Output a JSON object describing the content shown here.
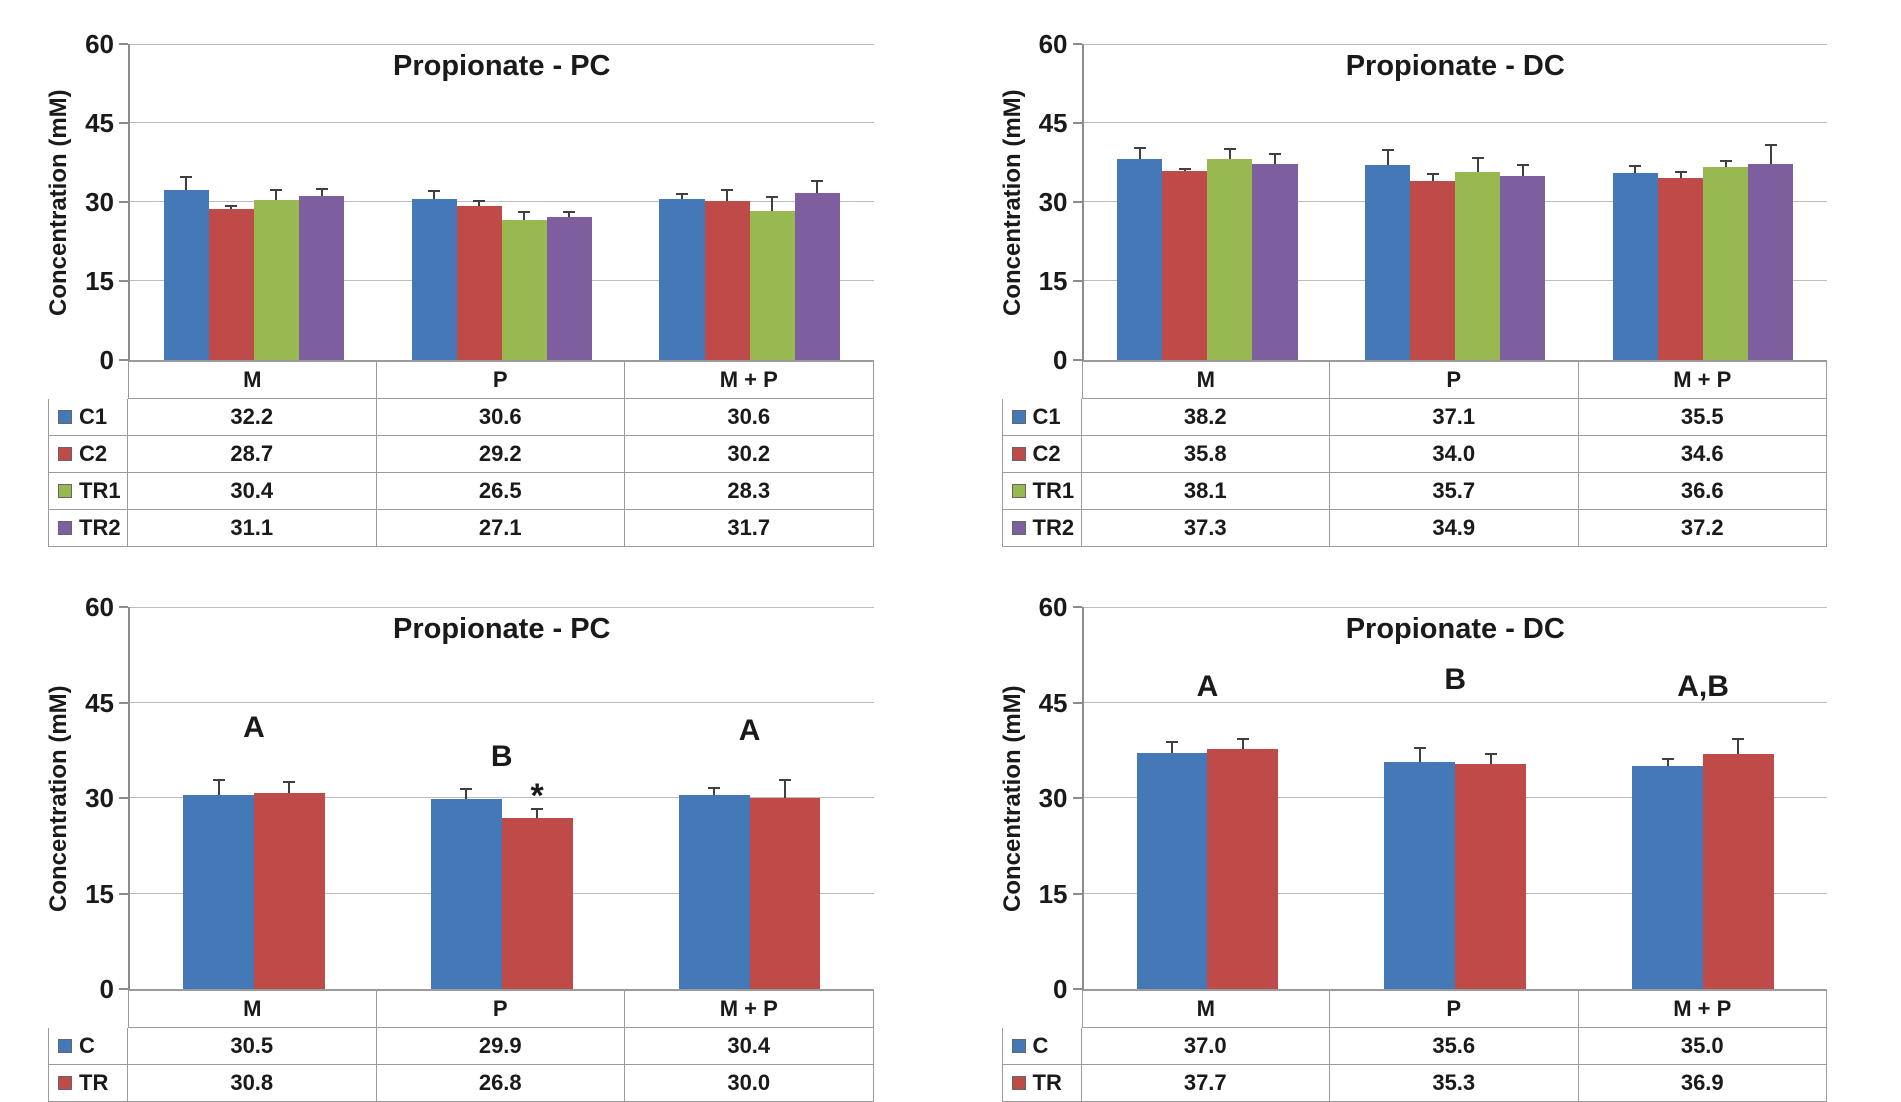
{
  "figure": {
    "panel_layout": "2x2",
    "background": "#ffffff"
  },
  "colors": {
    "series_blue": "#4478B6",
    "series_red": "#BE4B48",
    "series_green": "#98B952",
    "series_purple": "#7D5FA0",
    "gridline": "#bcbcbc",
    "axis": "#8c8c8c",
    "table_border": "#9b9b9b",
    "error_bar": "#3f3f3f",
    "text": "#1a1a1a"
  },
  "chart_data": [
    {
      "type": "bar",
      "position": "top-left",
      "title": "Propionate - PC",
      "ylabel": "Concentration (mM)",
      "ylim": [
        0,
        60
      ],
      "yticks": [
        0,
        15,
        30,
        45,
        60
      ],
      "grid": true,
      "legend_position": "data-table-left",
      "categories": [
        "M",
        "P",
        "M + P"
      ],
      "series": [
        {
          "name": "C1",
          "color": "#4478B6",
          "values": [
            32.2,
            30.6,
            30.6
          ],
          "errors": [
            2.8,
            1.6,
            1.2
          ]
        },
        {
          "name": "C2",
          "color": "#BE4B48",
          "values": [
            28.7,
            29.2,
            30.2
          ],
          "errors": [
            0.8,
            1.2,
            2.2
          ]
        },
        {
          "name": "TR1",
          "color": "#98B952",
          "values": [
            30.4,
            26.5,
            28.3
          ],
          "errors": [
            2.0,
            1.8,
            2.8
          ]
        },
        {
          "name": "TR2",
          "color": "#7D5FA0",
          "values": [
            31.1,
            27.1,
            31.7
          ],
          "errors": [
            1.6,
            1.2,
            2.4
          ]
        }
      ],
      "annotations": []
    },
    {
      "type": "bar",
      "position": "top-right",
      "title": "Propionate - DC",
      "ylabel": "Concentration (mM)",
      "ylim": [
        0,
        60
      ],
      "yticks": [
        0,
        15,
        30,
        45,
        60
      ],
      "grid": true,
      "legend_position": "data-table-left",
      "categories": [
        "M",
        "P",
        "M + P"
      ],
      "series": [
        {
          "name": "C1",
          "color": "#4478B6",
          "values": [
            38.2,
            37.1,
            35.5
          ],
          "errors": [
            2.3,
            2.9,
            1.5
          ]
        },
        {
          "name": "C2",
          "color": "#BE4B48",
          "values": [
            35.8,
            34.0,
            34.6
          ],
          "errors": [
            0.7,
            1.5,
            1.2
          ]
        },
        {
          "name": "TR1",
          "color": "#98B952",
          "values": [
            38.1,
            35.7,
            36.6
          ],
          "errors": [
            2.2,
            2.8,
            1.4
          ]
        },
        {
          "name": "TR2",
          "color": "#7D5FA0",
          "values": [
            37.3,
            34.9,
            37.2
          ],
          "errors": [
            2.0,
            2.3,
            3.8
          ]
        }
      ],
      "annotations": []
    },
    {
      "type": "bar",
      "position": "bottom-left",
      "title": "Propionate - PC",
      "ylabel": "Concentration (mM)",
      "ylim": [
        0,
        60
      ],
      "yticks": [
        0,
        15,
        30,
        45,
        60
      ],
      "grid": true,
      "legend_position": "data-table-left",
      "categories": [
        "M",
        "P",
        "M + P"
      ],
      "series": [
        {
          "name": "C",
          "color": "#4478B6",
          "values": [
            30.5,
            29.9,
            30.4
          ],
          "errors": [
            2.5,
            1.6,
            1.4
          ]
        },
        {
          "name": "TR",
          "color": "#BE4B48",
          "values": [
            30.8,
            26.8,
            30.0
          ],
          "errors": [
            1.9,
            1.7,
            3.0
          ]
        }
      ],
      "annotations": [
        {
          "text": "A",
          "category": 0,
          "y": 41.0
        },
        {
          "text": "B",
          "category": 1,
          "y": 36.5
        },
        {
          "text": "*",
          "category": 1,
          "series": 1,
          "y": 32.0
        },
        {
          "text": "A",
          "category": 2,
          "y": 40.5
        }
      ]
    },
    {
      "type": "bar",
      "position": "bottom-right",
      "title": "Propionate - DC",
      "ylabel": "Concentration (mM)",
      "ylim": [
        0,
        60
      ],
      "yticks": [
        0,
        15,
        30,
        45,
        60
      ],
      "grid": true,
      "legend_position": "data-table-left",
      "categories": [
        "M",
        "P",
        "M + P"
      ],
      "series": [
        {
          "name": "C",
          "color": "#4478B6",
          "values": [
            37.0,
            35.6,
            35.0
          ],
          "errors": [
            2.0,
            2.4,
            1.3
          ]
        },
        {
          "name": "TR",
          "color": "#BE4B48",
          "values": [
            37.7,
            35.3,
            36.9
          ],
          "errors": [
            1.8,
            1.7,
            2.6
          ]
        }
      ],
      "annotations": [
        {
          "text": "A",
          "category": 0,
          "y": 47.5
        },
        {
          "text": "B",
          "category": 1,
          "y": 48.5
        },
        {
          "text": "A,B",
          "category": 2,
          "y": 47.5
        }
      ]
    }
  ]
}
